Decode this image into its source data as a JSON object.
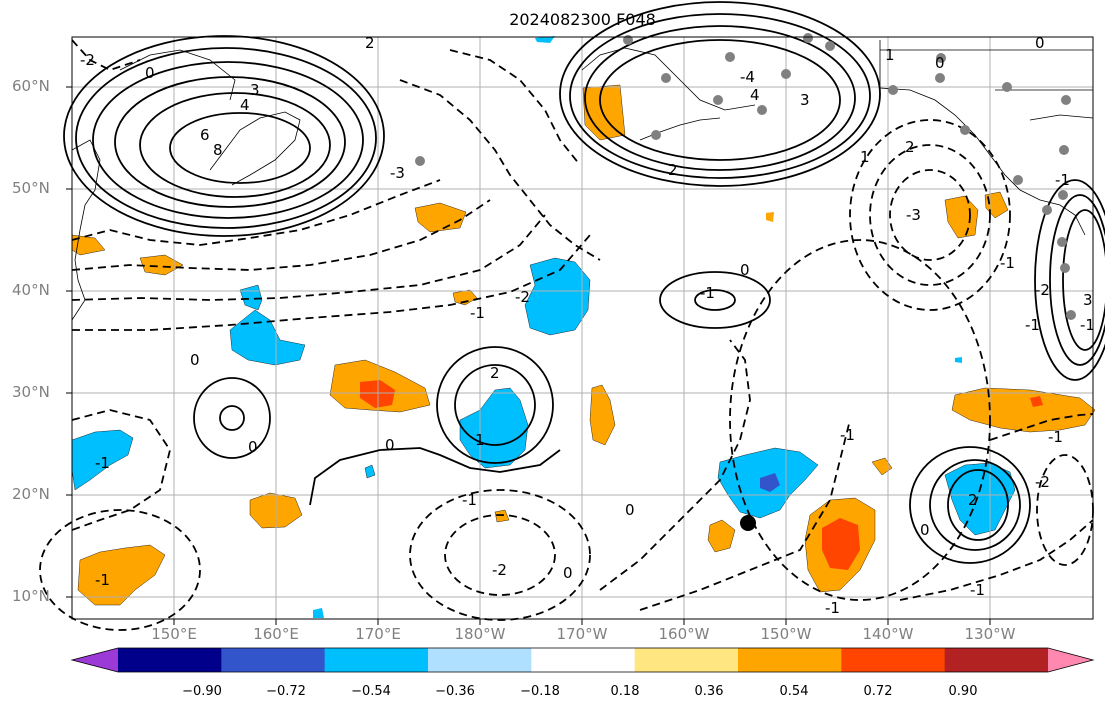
{
  "title": "2024082300 F048",
  "lat_labels": [
    "60°N",
    "50°N",
    "40°N",
    "30°N",
    "20°N",
    "10°N"
  ],
  "lon_labels": [
    "150°E",
    "160°E",
    "170°E",
    "180°W",
    "170°W",
    "160°W",
    "150°W",
    "140°W",
    "130°W"
  ],
  "colorbar": {
    "ticks": [
      "−0.90",
      "−0.72",
      "−0.54",
      "−0.36",
      "−0.18",
      "0.18",
      "0.36",
      "0.54",
      "0.72",
      "0.90"
    ],
    "colors": [
      "#9b3ad6",
      "#00008b",
      "#3355cc",
      "#00bfff",
      "#b0e0ff",
      "#ffffff",
      "#ffe680",
      "#ffa500",
      "#ff4500",
      "#b22222",
      "#ff88b0"
    ]
  },
  "contour_labels": [
    "-2",
    "0",
    "6",
    "8",
    "4",
    "3",
    "-3",
    "-2",
    "2",
    "1",
    "0",
    "-2",
    "-1",
    "0",
    "-1",
    "0",
    "-1",
    "0",
    "2",
    "-1",
    "-1",
    "-2",
    "-1",
    "0",
    "-3",
    "-1",
    "-1",
    "1",
    "-4",
    "1",
    "-1",
    "2",
    "3",
    "0",
    "-1",
    "4",
    "3",
    "-1",
    "0",
    "2",
    "2",
    "0",
    "-2",
    "0",
    "-1",
    "-1"
  ]
}
